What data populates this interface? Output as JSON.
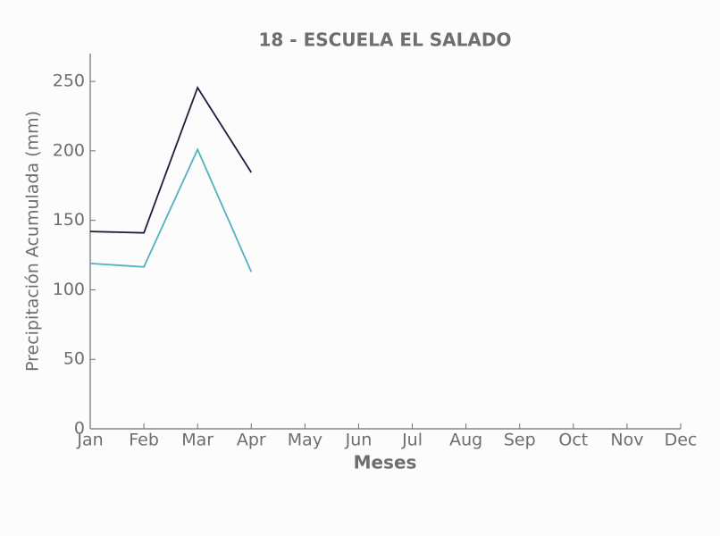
{
  "chart_data": {
    "type": "line",
    "title": "18 - ESCUELA EL SALADO",
    "x_label": "Meses",
    "y_label": "Precipitación Acumulada (mm)",
    "categories": [
      "Jan",
      "Feb",
      "Mar",
      "Apr",
      "May",
      "Jun",
      "Jul",
      "Aug",
      "Sep",
      "Oct",
      "Nov",
      "Dec"
    ],
    "series": [
      {
        "color": "#1e1d3a",
        "values": [
          142,
          141,
          245.5,
          184.5,
          null,
          null,
          null,
          null,
          null,
          null,
          null,
          null
        ]
      },
      {
        "color": "#4fb3bf",
        "values": [
          119,
          116.5,
          201,
          113,
          null,
          null,
          null,
          null,
          null,
          null,
          null,
          null
        ]
      }
    ],
    "ylim": [
      0,
      270
    ],
    "yticks": [
      0,
      50,
      100,
      150,
      200,
      250
    ]
  }
}
